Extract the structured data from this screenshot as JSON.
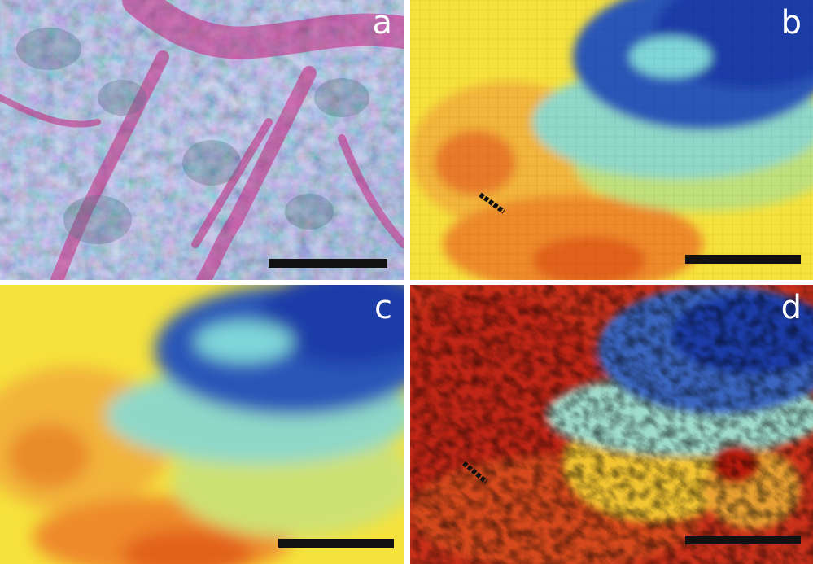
{
  "figure": {
    "panels": [
      {
        "id": "a",
        "label": "a",
        "kind": "stained-tissue-micrograph"
      },
      {
        "id": "b",
        "label": "b",
        "kind": "pixelated-heatmap"
      },
      {
        "id": "c",
        "label": "c",
        "kind": "smoothed-heatmap"
      },
      {
        "id": "d",
        "label": "d",
        "kind": "high-resolution-heatmap"
      }
    ]
  },
  "colors": {
    "stain_magenta": "#c0287a",
    "stain_teal": "#7fb7b3",
    "heat_blue": "#1e3ea8",
    "heat_cyan": "#7fd6d8",
    "heat_yellow": "#f6e23c",
    "heat_orange": "#f08a24",
    "heat_red": "#b21c0e",
    "scale_bar": "#111111",
    "label": "#ffffff"
  }
}
